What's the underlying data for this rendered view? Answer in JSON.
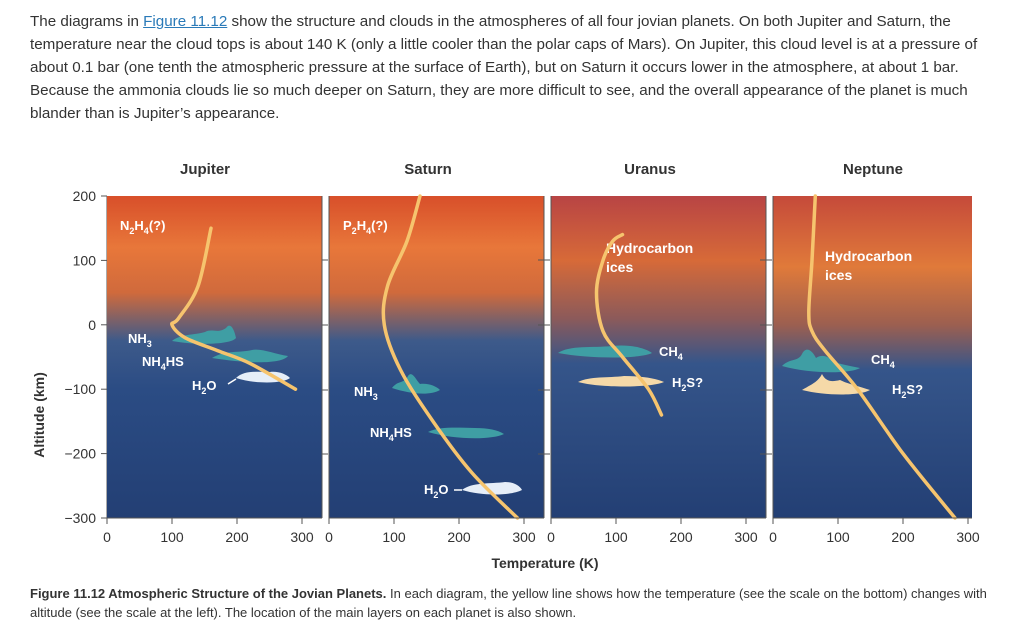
{
  "intro": {
    "before_link": "The diagrams in ",
    "link": "Figure 11.12",
    "after_link": " show the structure and clouds in the atmospheres of all four jovian planets. On both Jupiter and Saturn, the temperature near the cloud tops is about 140 K (only a little cooler than the polar caps of Mars). On Jupiter, this cloud level is at a pressure of about 0.1 bar (one tenth the atmospheric pressure at the surface of Earth), but on Saturn it occurs lower in the atmosphere, at about 1 bar. Because the ammonia clouds lie so much deeper on Saturn, they are more difficult to see, and the overall appearance of the planet is much blander than is Jupiter’s appearance."
  },
  "figure": {
    "ylabel": "Altitude (km)",
    "xlabel": "Temperature (K)",
    "y_ticks": [
      "200",
      "100",
      "0",
      "−100",
      "−200",
      "−300"
    ],
    "panels": [
      {
        "name": "Jupiter",
        "x_ticks": [
          "0",
          "100",
          "200",
          "300"
        ],
        "labels": [
          {
            "parts": [
              "N",
              "2",
              "H",
              "4",
              "(?)"
            ]
          },
          {
            "parts": [
              "NH",
              "3"
            ]
          },
          {
            "parts": [
              "NH",
              "4",
              "HS"
            ]
          },
          {
            "parts": [
              "H",
              "2",
              "O"
            ]
          }
        ]
      },
      {
        "name": "Saturn",
        "x_ticks": [
          "0",
          "100",
          "200",
          "300"
        ],
        "labels": [
          {
            "parts": [
              "P",
              "2",
              "H",
              "4",
              "(?)"
            ]
          },
          {
            "parts": [
              "NH",
              "3"
            ]
          },
          {
            "parts": [
              "NH",
              "4",
              "HS"
            ]
          },
          {
            "parts": [
              "H",
              "2",
              "O"
            ]
          }
        ]
      },
      {
        "name": "Uranus",
        "x_ticks": [
          "0",
          "100",
          "200",
          "300"
        ],
        "labels": [
          {
            "line1": "Hydrocarbon",
            "line2": "ices"
          },
          {
            "parts": [
              "CH",
              "4"
            ]
          },
          {
            "parts": [
              "H",
              "2",
              "S?"
            ]
          }
        ]
      },
      {
        "name": "Neptune",
        "x_ticks": [
          "0",
          "100",
          "200",
          "300"
        ],
        "labels": [
          {
            "line1": "Hydrocarbon",
            "line2": "ices"
          },
          {
            "parts": [
              "CH",
              "4"
            ]
          },
          {
            "parts": [
              "H",
              "2",
              "S?"
            ]
          }
        ]
      }
    ]
  },
  "chart_data": {
    "type": "line",
    "xlabel": "Temperature (K)",
    "ylabel": "Altitude (km)",
    "xlim": [
      0,
      300
    ],
    "ylim": [
      -300,
      200
    ],
    "series": [
      {
        "name": "Jupiter",
        "x": [
          160,
          140,
          110,
          100,
          120,
          170,
          220,
          290
        ],
        "y": [
          150,
          60,
          10,
          0,
          -20,
          -40,
          -60,
          -100
        ]
      },
      {
        "name": "Saturn",
        "x": [
          140,
          120,
          90,
          85,
          110,
          160,
          220,
          290
        ],
        "y": [
          200,
          130,
          60,
          0,
          -70,
          -150,
          -230,
          -300
        ]
      },
      {
        "name": "Uranus",
        "x": [
          110,
          95,
          80,
          70,
          80,
          110,
          150,
          170
        ],
        "y": [
          140,
          130,
          100,
          50,
          -10,
          -50,
          -100,
          -140
        ]
      },
      {
        "name": "Neptune",
        "x": [
          65,
          60,
          55,
          60,
          80,
          130,
          200,
          280
        ],
        "y": [
          200,
          100,
          20,
          -10,
          -40,
          -100,
          -200,
          -300
        ]
      }
    ]
  },
  "caption": {
    "bold": "Figure 11.12 Atmospheric Structure of the Jovian Planets.",
    "text": " In each diagram, the yellow line shows how the temperature (see the scale on the bottom) changes with altitude (see the scale at the left). The location of the main layers on each planet is also shown."
  },
  "colors": {
    "sky_top": "#d84f2a",
    "sky_mid": "#e87a3c",
    "sky_low": "#2d4f86",
    "sky_bottom": "#223f73",
    "uranus_top": "#b44040",
    "profile": "#f6c46e",
    "cloud_teal": "#3f9ea4",
    "cloud_white": "#e6eef8",
    "cloud_cream": "#f5d9a8"
  }
}
